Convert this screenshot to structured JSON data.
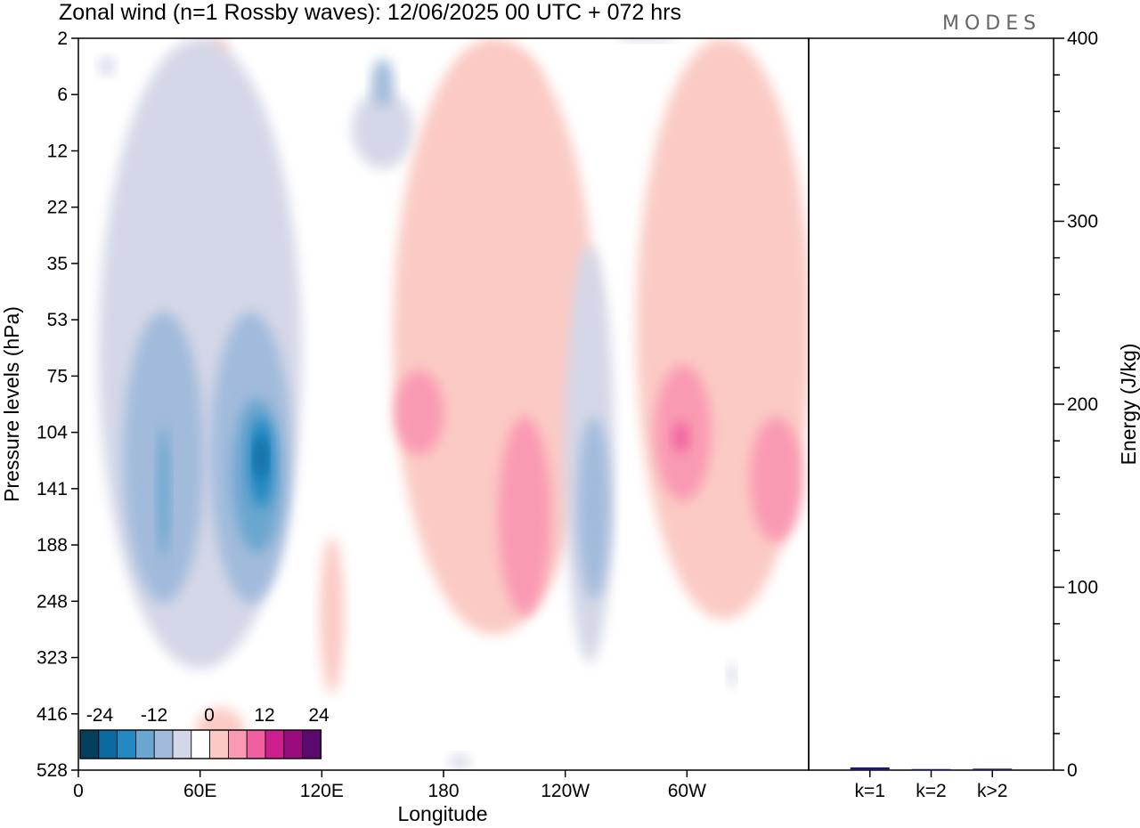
{
  "brand": "MODES",
  "chart_data": [
    {
      "type": "heatmap",
      "title": "Zonal wind (n=1 Rossby waves):  12/06/2025  00 UTC  + 072 hrs",
      "xlabel": "Longitude",
      "ylabel": "Pressure levels (hPa)",
      "x_ticks": [
        {
          "label": "0",
          "lon": 0
        },
        {
          "label": "60E",
          "lon": 60
        },
        {
          "label": "120E",
          "lon": 120
        },
        {
          "label": "180",
          "lon": 180
        },
        {
          "label": "120W",
          "lon": 240
        },
        {
          "label": "60W",
          "lon": 300
        }
      ],
      "xlim": [
        0,
        360
      ],
      "y_levels": [
        "2",
        "6",
        "12",
        "22",
        "35",
        "53",
        "75",
        "104",
        "141",
        "188",
        "248",
        "323",
        "416",
        "528"
      ],
      "colorbar": {
        "tick_labels": [
          "-24",
          "-12",
          "0",
          "12",
          "24"
        ],
        "bounds": [
          -30,
          -24,
          -18,
          -12,
          -6,
          -3,
          3,
          6,
          12,
          18,
          24,
          30
        ],
        "colors": [
          "#053f5e",
          "#0b6aa0",
          "#2488c2",
          "#6aa6cf",
          "#a2bbdb",
          "#d4d7e7",
          "#ffffff",
          "#fbcac4",
          "#f99ab2",
          "#f060a0",
          "#cc1f8d",
          "#9a0c7d",
          "#5a0a6c"
        ]
      },
      "regions": [
        {
          "value": -4,
          "lon": 14,
          "level": 3.5,
          "lon_width": 8,
          "level_width": 1.2
        },
        {
          "value": -4,
          "lon": 150,
          "level": 10,
          "lon_width": 30,
          "level_width": 9
        },
        {
          "value": -9,
          "lon": 150,
          "level": 5,
          "lon_width": 11,
          "level_width": 4
        },
        {
          "value": -4,
          "lon": 280,
          "level": 1,
          "lon_width": 30,
          "level_width": 1.2
        },
        {
          "value": 4,
          "lon": 68,
          "level": 2,
          "lon_width": 12,
          "level_width": 2
        },
        {
          "value": 4,
          "lon": 207,
          "level": 5,
          "lon_width": 40,
          "level_width": 5
        },
        {
          "value": 9,
          "lon": 207,
          "level": 5,
          "lon_width": 14,
          "level_width": 1.5
        },
        {
          "value": 4,
          "lon": 334,
          "level": 16,
          "lon_width": 24,
          "level_width": 4
        },
        {
          "value": 4,
          "lon": 337,
          "level": 8,
          "lon_width": 10,
          "level_width": 1
        },
        {
          "value": -4,
          "lon": 60,
          "level": 130,
          "lon_width": 100,
          "level_width": 420
        },
        {
          "value": -9,
          "lon": 42,
          "level": 150,
          "lon_width": 40,
          "level_width": 200
        },
        {
          "value": -9,
          "lon": 85,
          "level": 150,
          "lon_width": 40,
          "level_width": 200
        },
        {
          "value": -14,
          "lon": 42,
          "level": 150,
          "lon_width": 6,
          "level_width": 100
        },
        {
          "value": -14,
          "lon": 88,
          "level": 140,
          "lon_width": 24,
          "level_width": 110
        },
        {
          "value": -20,
          "lon": 90,
          "level": 125,
          "lon_width": 12,
          "level_width": 60
        },
        {
          "value": -27,
          "lon": 90,
          "level": 120,
          "lon_width": 6,
          "level_width": 28
        },
        {
          "value": 4,
          "lon": 125,
          "level": 280,
          "lon_width": 12,
          "level_width": 200
        },
        {
          "value": 4,
          "lon": 205,
          "level": 130,
          "lon_width": 100,
          "level_width": 320
        },
        {
          "value": 9,
          "lon": 168,
          "level": 95,
          "lon_width": 24,
          "level_width": 45
        },
        {
          "value": 9,
          "lon": 220,
          "level": 180,
          "lon_width": 26,
          "level_width": 170
        },
        {
          "value": -4,
          "lon": 252,
          "level": 180,
          "lon_width": 24,
          "level_width": 300
        },
        {
          "value": -9,
          "lon": 254,
          "level": 170,
          "lon_width": 16,
          "level_width": 150
        },
        {
          "value": 4,
          "lon": 318,
          "level": 130,
          "lon_width": 86,
          "level_width": 280
        },
        {
          "value": 9,
          "lon": 298,
          "level": 110,
          "lon_width": 28,
          "level_width": 80
        },
        {
          "value": 9,
          "lon": 344,
          "level": 140,
          "lon_width": 26,
          "level_width": 90
        },
        {
          "value": 14,
          "lon": 297,
          "level": 107,
          "lon_width": 8,
          "level_width": 18
        },
        {
          "value": -4,
          "lon": 322,
          "level": 350,
          "lon_width": 4,
          "level_width": 40
        },
        {
          "value": 4,
          "lon": 70,
          "level": 450,
          "lon_width": 24,
          "level_width": 90
        },
        {
          "value": -4,
          "lon": 188,
          "level": 510,
          "lon_width": 10,
          "level_width": 30
        }
      ]
    },
    {
      "type": "bar",
      "ylabel": "Energy (J/kg)",
      "categories": [
        "k=1",
        "k=2",
        "k>2"
      ],
      "values": [
        1.5,
        0.6,
        0.8
      ],
      "ylim": [
        0,
        400
      ],
      "y_ticks": [
        "0",
        "100",
        "200",
        "300",
        "400"
      ],
      "bar_color": "#1a1a6e"
    }
  ]
}
